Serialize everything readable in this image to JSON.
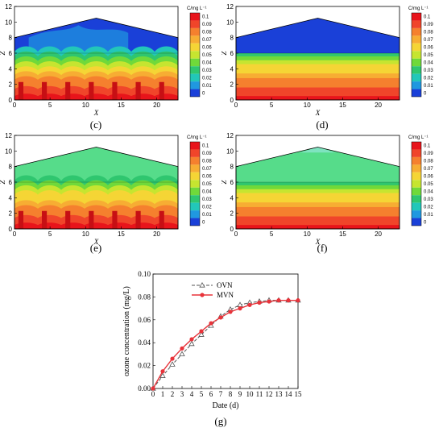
{
  "panels": [
    {
      "id": "c",
      "label": "(c)",
      "pattern": "wave",
      "roof": "blue"
    },
    {
      "id": "d",
      "label": "(d)",
      "pattern": "flat",
      "roof": "blue"
    },
    {
      "id": "e",
      "label": "(e)",
      "pattern": "wave",
      "roof": "green"
    },
    {
      "id": "f",
      "label": "(f)",
      "pattern": "flat",
      "roof": "green"
    }
  ],
  "contour_axes": {
    "xlabel": "X",
    "ylabel": "Z",
    "xticks": [
      "0",
      "5",
      "10",
      "15",
      "20"
    ],
    "yticks": [
      "0",
      "2",
      "4",
      "6",
      "8",
      "10",
      "12"
    ]
  },
  "colorbar": {
    "title": "C/mg L⁻¹",
    "levels": [
      "0.1",
      "0.09",
      "0.08",
      "0.07",
      "0.06",
      "0.05",
      "0.04",
      "0.03",
      "0.02",
      "0.01",
      "0"
    ],
    "colors": [
      "#e8141b",
      "#f0452a",
      "#f5802e",
      "#f7ad33",
      "#f5d535",
      "#c6e530",
      "#70d93a",
      "#2fc66f",
      "#22c7b9",
      "#2098e0",
      "#1a40d8"
    ]
  },
  "chart_data": {
    "type": "line",
    "title": "",
    "xlabel": "Date (d)",
    "ylabel": "ozone concentration (mg/L)",
    "xlim": [
      0,
      15
    ],
    "ylim": [
      0,
      0.1
    ],
    "x": [
      0,
      1,
      2,
      3,
      4,
      5,
      6,
      7,
      8,
      9,
      10,
      11,
      12,
      13,
      14,
      15
    ],
    "xticks": [
      "0",
      "1",
      "2",
      "3",
      "4",
      "5",
      "6",
      "7",
      "8",
      "9",
      "10",
      "11",
      "12",
      "13",
      "14",
      "15"
    ],
    "yticks": [
      "0.00",
      "0.02",
      "0.04",
      "0.06",
      "0.08",
      "0.10"
    ],
    "series": [
      {
        "name": "OVN",
        "color": "#555555",
        "marker": "triangle",
        "dash": true,
        "values": [
          0.0,
          0.011,
          0.021,
          0.03,
          0.039,
          0.047,
          0.055,
          0.063,
          0.069,
          0.073,
          0.075,
          0.076,
          0.077,
          0.077,
          0.077,
          0.077
        ]
      },
      {
        "name": "MVN",
        "color": "#e8333a",
        "marker": "circle",
        "dash": false,
        "values": [
          0.0,
          0.015,
          0.026,
          0.035,
          0.043,
          0.05,
          0.057,
          0.062,
          0.067,
          0.07,
          0.073,
          0.075,
          0.076,
          0.077,
          0.077,
          0.077
        ]
      }
    ]
  },
  "g_label": "(g)"
}
